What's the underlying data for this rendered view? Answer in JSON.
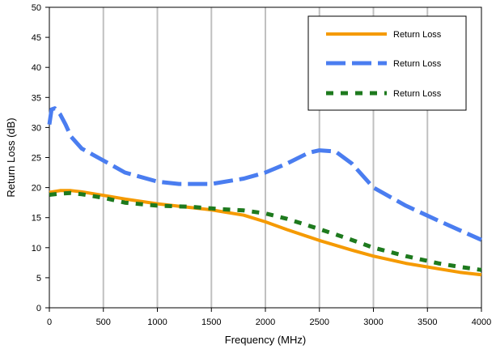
{
  "chart_data": {
    "type": "line",
    "title": "",
    "xlabel": "Frequency (MHz)",
    "ylabel": "Return Loss (dB)",
    "xlim": [
      0,
      4000
    ],
    "ylim": [
      0,
      50
    ],
    "xticks": [
      0,
      500,
      1000,
      1500,
      2000,
      2500,
      3000,
      3500,
      4000
    ],
    "yticks": [
      0,
      5,
      10,
      15,
      20,
      25,
      30,
      35,
      40,
      45,
      50
    ],
    "grid": "vertical",
    "legend_position": "top-right",
    "series": [
      {
        "name": "Return Loss",
        "color": "#f59a00",
        "style": "solid",
        "x": [
          0,
          100,
          200,
          300,
          500,
          700,
          1000,
          1200,
          1500,
          1800,
          2000,
          2200,
          2500,
          2800,
          3000,
          3300,
          3600,
          3800,
          4000
        ],
        "y": [
          19.2,
          19.5,
          19.5,
          19.3,
          18.7,
          18.1,
          17.3,
          16.9,
          16.3,
          15.4,
          14.3,
          13.0,
          11.2,
          9.6,
          8.6,
          7.4,
          6.5,
          5.9,
          5.5
        ]
      },
      {
        "name": "Return Loss",
        "color": "#4a7df0",
        "style": "dashed",
        "x": [
          0,
          20,
          50,
          100,
          150,
          200,
          300,
          400,
          500,
          700,
          1000,
          1200,
          1500,
          1800,
          2000,
          2200,
          2400,
          2500,
          2650,
          2800,
          3000,
          3300,
          3600,
          4000
        ],
        "y": [
          30.5,
          33.0,
          33.2,
          32.2,
          30.5,
          28.5,
          26.5,
          25.5,
          24.5,
          22.5,
          21.0,
          20.6,
          20.6,
          21.5,
          22.5,
          24.0,
          25.8,
          26.2,
          26.0,
          24.0,
          20.0,
          17.0,
          14.5,
          11.3
        ]
      },
      {
        "name": "Return Loss",
        "color": "#1e7a1e",
        "style": "dotted",
        "x": [
          0,
          100,
          200,
          300,
          500,
          700,
          1000,
          1300,
          1600,
          1800,
          2000,
          2200,
          2500,
          2800,
          3000,
          3300,
          3600,
          3800,
          4000
        ],
        "y": [
          18.8,
          19.0,
          19.1,
          18.9,
          18.3,
          17.5,
          17.0,
          16.8,
          16.4,
          16.2,
          15.7,
          14.8,
          13.1,
          11.3,
          10.0,
          8.6,
          7.4,
          6.8,
          6.3
        ]
      }
    ]
  }
}
